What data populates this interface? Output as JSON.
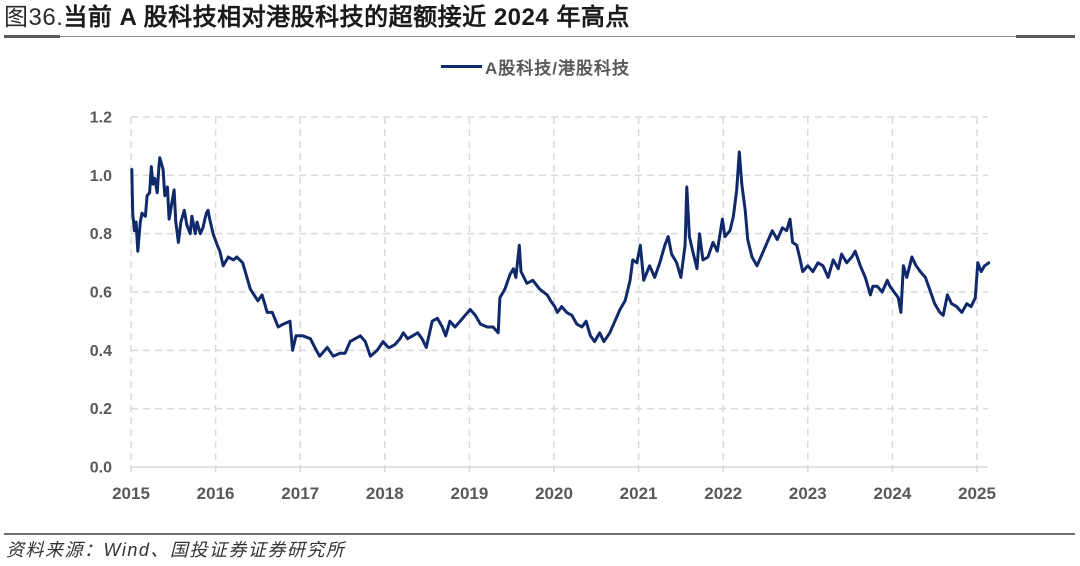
{
  "figure": {
    "number": "图36.",
    "title": "当前 A 股科技相对港股科技的超额接近 2024 年高点",
    "source": "资料来源：Wind、国投证券证券研究所"
  },
  "legend": {
    "items": [
      {
        "label": "A股科技/港股科技",
        "color": "#10296b"
      }
    ]
  },
  "colors": {
    "series": "#10296b",
    "grid": "#d9d9d9",
    "tick_label": "#595959",
    "rule": "#6e6e6e"
  },
  "chart_data": {
    "type": "line",
    "title": "图36.当前 A 股科技相对港股科技的超额接近 2024 年高点",
    "xlabel": "",
    "ylabel": "",
    "ylim": [
      0,
      1.2
    ],
    "xlim": [
      2015,
      2025.14
    ],
    "yticks": [
      "0.0",
      "0.2",
      "0.4",
      "0.6",
      "0.8",
      "1.0",
      "1.2"
    ],
    "ytick_values": [
      0,
      0.2,
      0.4,
      0.6,
      0.8,
      1.0,
      1.2
    ],
    "xticks": [
      "2015",
      "2016",
      "2017",
      "2018",
      "2019",
      "2020",
      "2021",
      "2022",
      "2023",
      "2024",
      "2025"
    ],
    "xtick_values": [
      2015,
      2016,
      2017,
      2018,
      2019,
      2020,
      2021,
      2022,
      2023,
      2024,
      2025
    ],
    "grid": true,
    "grid_style": "dashed",
    "legend_position": "top-center",
    "series": [
      {
        "name": "A股科技/港股科技",
        "color": "#10296b",
        "x": [
          2015.01,
          2015.02,
          2015.04,
          2015.06,
          2015.08,
          2015.11,
          2015.13,
          2015.17,
          2015.19,
          2015.22,
          2015.24,
          2015.26,
          2015.28,
          2015.31,
          2015.33,
          2015.34,
          2015.38,
          2015.4,
          2015.43,
          2015.45,
          2015.48,
          2015.51,
          2015.53,
          2015.56,
          2015.59,
          2015.63,
          2015.66,
          2015.7,
          2015.72,
          2015.76,
          2015.78,
          2015.82,
          2015.85,
          2015.89,
          2015.91,
          2015.93,
          2015.97,
          2016.02,
          2016.05,
          2016.09,
          2016.15,
          2016.21,
          2016.25,
          2016.32,
          2016.41,
          2016.5,
          2016.55,
          2016.61,
          2016.67,
          2016.74,
          2016.8,
          2016.88,
          2016.91,
          2016.95,
          2017.03,
          2017.12,
          2017.19,
          2017.23,
          2017.32,
          2017.39,
          2017.47,
          2017.53,
          2017.59,
          2017.65,
          2017.71,
          2017.77,
          2017.83,
          2017.91,
          2017.98,
          2018.04,
          2018.06,
          2018.12,
          2018.18,
          2018.22,
          2018.27,
          2018.33,
          2018.39,
          2018.44,
          2018.49,
          2018.56,
          2018.62,
          2018.68,
          2018.72,
          2018.77,
          2018.83,
          2018.89,
          2018.95,
          2019.01,
          2019.07,
          2019.13,
          2019.21,
          2019.28,
          2019.34,
          2019.36,
          2019.42,
          2019.48,
          2019.52,
          2019.55,
          2019.59,
          2019.61,
          2019.68,
          2019.75,
          2019.83,
          2019.92,
          2019.96,
          2020.01,
          2020.04,
          2020.09,
          2020.15,
          2020.21,
          2020.27,
          2020.33,
          2020.38,
          2020.43,
          2020.48,
          2020.54,
          2020.59,
          2020.66,
          2020.72,
          2020.78,
          2020.84,
          2020.9,
          2020.93,
          2020.98,
          2021.02,
          2021.06,
          2021.13,
          2021.19,
          2021.25,
          2021.31,
          2021.35,
          2021.39,
          2021.45,
          2021.5,
          2021.55,
          2021.57,
          2021.6,
          2021.64,
          2021.69,
          2021.72,
          2021.76,
          2021.82,
          2021.88,
          2021.93,
          2021.99,
          2022.02,
          2022.08,
          2022.12,
          2022.16,
          2022.19,
          2022.22,
          2022.26,
          2022.29,
          2022.34,
          2022.4,
          2022.46,
          2022.52,
          2022.58,
          2022.64,
          2022.7,
          2022.75,
          2022.79,
          2022.82,
          2022.87,
          2022.91,
          2022.94,
          2023.0,
          2023.06,
          2023.12,
          2023.18,
          2023.24,
          2023.3,
          2023.36,
          2023.4,
          2023.46,
          2023.52,
          2023.56,
          2023.62,
          2023.68,
          2023.74,
          2023.77,
          2023.82,
          2023.88,
          2023.94,
          2023.97,
          2024.02,
          2024.07,
          2024.1,
          2024.13,
          2024.17,
          2024.23,
          2024.28,
          2024.33,
          2024.39,
          2024.44,
          2024.5,
          2024.56,
          2024.6,
          2024.65,
          2024.7,
          2024.76,
          2024.82,
          2024.88,
          2024.93,
          2024.98,
          2025.01,
          2025.05,
          2025.09,
          2025.14
        ],
        "values": [
          1.02,
          0.87,
          0.81,
          0.84,
          0.74,
          0.84,
          0.87,
          0.86,
          0.93,
          0.94,
          1.03,
          0.97,
          0.99,
          0.94,
          1.03,
          1.06,
          1.02,
          0.93,
          0.96,
          0.85,
          0.9,
          0.95,
          0.84,
          0.77,
          0.84,
          0.88,
          0.83,
          0.8,
          0.86,
          0.8,
          0.84,
          0.8,
          0.82,
          0.87,
          0.88,
          0.85,
          0.8,
          0.76,
          0.74,
          0.69,
          0.72,
          0.71,
          0.72,
          0.7,
          0.61,
          0.57,
          0.59,
          0.53,
          0.53,
          0.48,
          0.49,
          0.5,
          0.4,
          0.45,
          0.45,
          0.44,
          0.4,
          0.38,
          0.41,
          0.38,
          0.39,
          0.39,
          0.43,
          0.44,
          0.45,
          0.43,
          0.38,
          0.4,
          0.43,
          0.41,
          0.41,
          0.42,
          0.44,
          0.46,
          0.44,
          0.45,
          0.46,
          0.44,
          0.41,
          0.5,
          0.51,
          0.48,
          0.45,
          0.5,
          0.48,
          0.5,
          0.52,
          0.54,
          0.52,
          0.49,
          0.48,
          0.48,
          0.46,
          0.58,
          0.61,
          0.66,
          0.68,
          0.65,
          0.76,
          0.67,
          0.63,
          0.64,
          0.61,
          0.59,
          0.57,
          0.55,
          0.53,
          0.55,
          0.53,
          0.52,
          0.49,
          0.48,
          0.5,
          0.45,
          0.43,
          0.46,
          0.43,
          0.46,
          0.5,
          0.54,
          0.57,
          0.64,
          0.71,
          0.7,
          0.76,
          0.64,
          0.69,
          0.65,
          0.7,
          0.76,
          0.79,
          0.73,
          0.7,
          0.65,
          0.76,
          0.96,
          0.79,
          0.74,
          0.68,
          0.8,
          0.71,
          0.72,
          0.77,
          0.74,
          0.85,
          0.79,
          0.81,
          0.86,
          0.95,
          1.08,
          0.97,
          0.88,
          0.78,
          0.72,
          0.69,
          0.73,
          0.77,
          0.81,
          0.78,
          0.82,
          0.81,
          0.85,
          0.77,
          0.76,
          0.71,
          0.67,
          0.69,
          0.67,
          0.7,
          0.69,
          0.65,
          0.71,
          0.68,
          0.73,
          0.7,
          0.72,
          0.74,
          0.69,
          0.65,
          0.59,
          0.62,
          0.62,
          0.6,
          0.64,
          0.62,
          0.6,
          0.58,
          0.53,
          0.69,
          0.65,
          0.72,
          0.69,
          0.67,
          0.65,
          0.61,
          0.56,
          0.53,
          0.52,
          0.59,
          0.56,
          0.55,
          0.53,
          0.56,
          0.55,
          0.58,
          0.7,
          0.67,
          0.69,
          0.7
        ]
      }
    ]
  }
}
